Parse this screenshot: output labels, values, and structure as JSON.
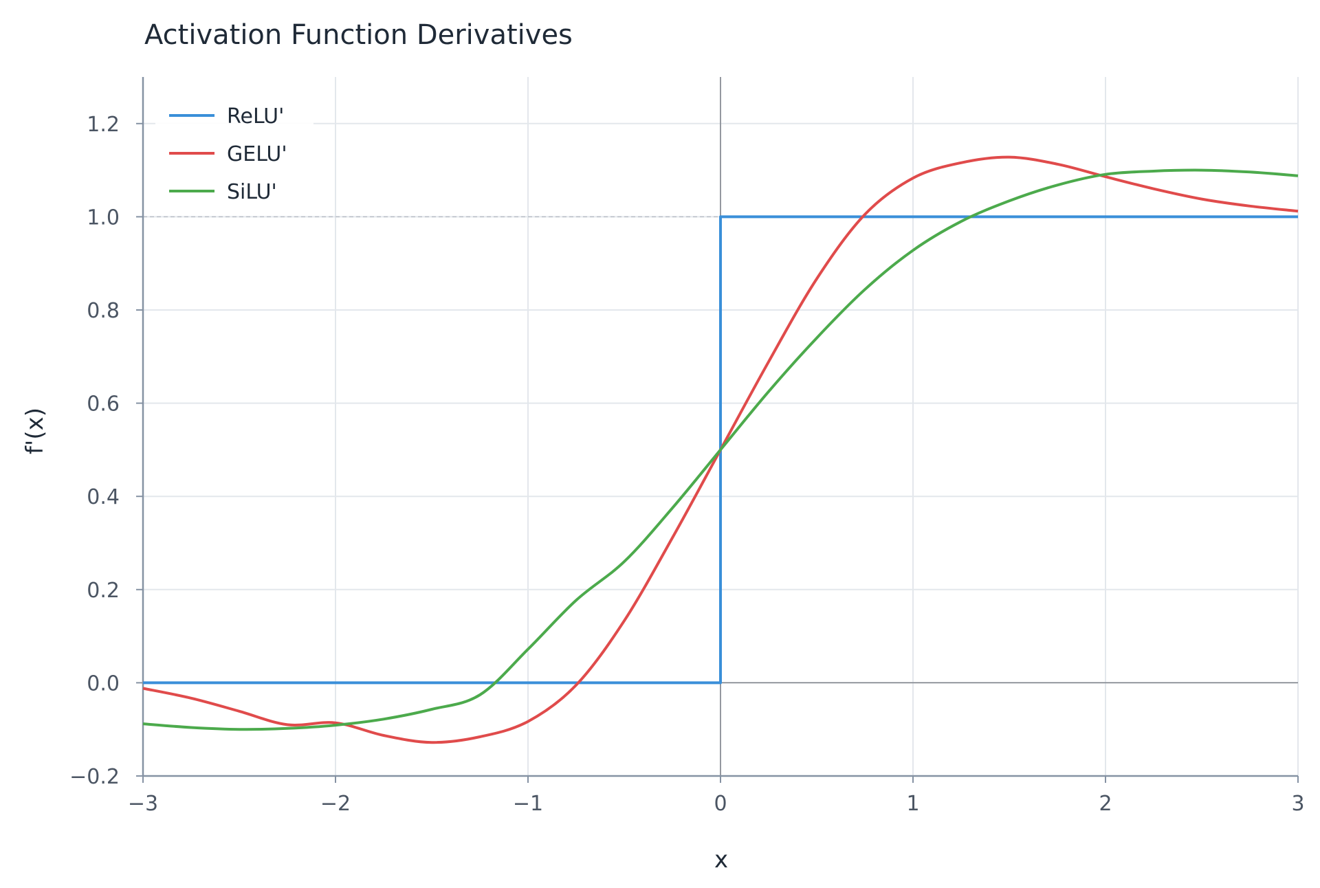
{
  "chart_data": {
    "type": "line",
    "title": "Activation Function Derivatives",
    "xlabel": "x",
    "ylabel": "f'(x)",
    "xlim": [
      -3,
      3
    ],
    "ylim": [
      -0.2,
      1.3
    ],
    "x_ticks": [
      -3,
      -2,
      -1,
      0,
      1,
      2,
      3
    ],
    "x_tick_labels": [
      "−3",
      "−2",
      "−1",
      "0",
      "1",
      "2",
      "3"
    ],
    "y_ticks": [
      -0.2,
      0.0,
      0.2,
      0.4,
      0.6,
      0.8,
      1.0,
      1.2
    ],
    "y_tick_labels": [
      "−0.2",
      "0.0",
      "0.2",
      "0.4",
      "0.6",
      "0.8",
      "1.0",
      "1.2"
    ],
    "grid": true,
    "legend_position": "top-left",
    "reference_lines": [
      {
        "axis": "y",
        "value": 1.0,
        "style": "dashed"
      },
      {
        "axis": "y",
        "value": 0.0,
        "style": "solid"
      },
      {
        "axis": "x",
        "value": 0.0,
        "style": "solid"
      }
    ],
    "x": [
      -3.0,
      -2.75,
      -2.5,
      -2.25,
      -2.0,
      -1.75,
      -1.5,
      -1.25,
      -1.0,
      -0.75,
      -0.5,
      -0.25,
      0.0,
      0.25,
      0.5,
      0.75,
      1.0,
      1.25,
      1.5,
      1.75,
      2.0,
      2.25,
      2.5,
      2.75,
      3.0
    ],
    "series": [
      {
        "name": "ReLU'",
        "color": "#3a8fd9",
        "points": [
          [
            -3,
            0
          ],
          [
            0,
            0
          ],
          [
            0,
            1
          ],
          [
            3,
            1
          ]
        ]
      },
      {
        "name": "GELU'",
        "color": "#e04b4b",
        "values": [
          -0.012,
          -0.033,
          -0.061,
          -0.09,
          -0.086,
          -0.113,
          -0.128,
          -0.116,
          -0.083,
          -0.005,
          0.133,
          0.311,
          0.5,
          0.689,
          0.867,
          1.005,
          1.083,
          1.116,
          1.128,
          1.113,
          1.086,
          1.06,
          1.038,
          1.023,
          1.012
        ]
      },
      {
        "name": "SiLU'",
        "color": "#4caa4c",
        "values": [
          -0.088,
          -0.096,
          -0.1,
          -0.098,
          -0.091,
          -0.078,
          -0.057,
          -0.026,
          0.072,
          0.177,
          0.26,
          0.375,
          0.5,
          0.625,
          0.74,
          0.844,
          0.928,
          0.99,
          1.034,
          1.068,
          1.091,
          1.098,
          1.1,
          1.096,
          1.088
        ]
      }
    ]
  }
}
